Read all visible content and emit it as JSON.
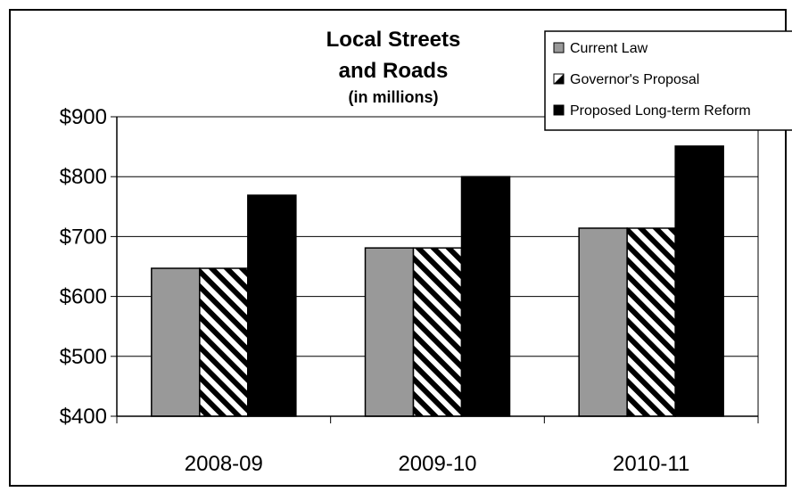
{
  "chart_data": {
    "type": "bar",
    "title_lines": [
      "Local Streets",
      "and Roads"
    ],
    "subtitle": "(in millions)",
    "categories": [
      "2008-09",
      "2009-10",
      "2010-11"
    ],
    "series": [
      {
        "name": "Current Law",
        "values": [
          647,
          681,
          714
        ],
        "fill": "#999999",
        "pattern": "solid"
      },
      {
        "name": "Governor's Proposal",
        "values": [
          647,
          681,
          714
        ],
        "fill": "#ffffff",
        "pattern": "diagonal-stripes"
      },
      {
        "name": "Proposed Long-term Reform",
        "values": [
          769,
          800,
          851
        ],
        "fill": "#000000",
        "pattern": "solid"
      }
    ],
    "ylim": [
      400,
      900
    ],
    "yticks": [
      400,
      500,
      600,
      700,
      800,
      900
    ],
    "ytick_labels": [
      "$400",
      "$500",
      "$600",
      "$700",
      "$800",
      "$900"
    ],
    "grid": true,
    "legend_position": "top-right",
    "colors": {
      "border": "#000000",
      "grid": "#000000",
      "background": "#ffffff"
    }
  }
}
